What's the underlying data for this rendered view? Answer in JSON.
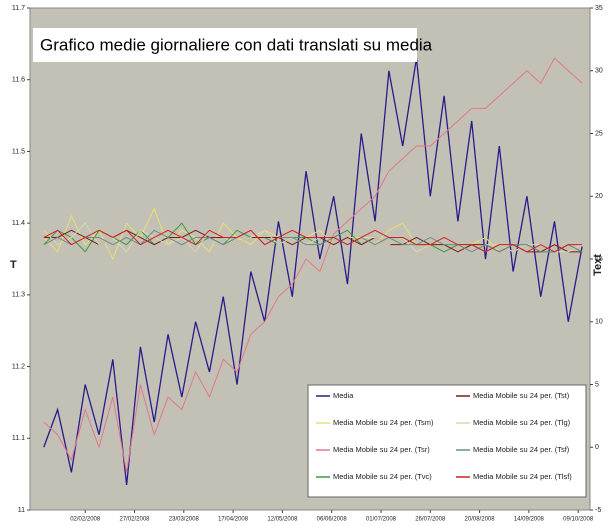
{
  "chart_data": {
    "type": "line",
    "title": "Grafico medie giornaliere con dati translati su media",
    "y_label": "T",
    "y2_label": "Text",
    "x": [
      "2008-01-12",
      "2008-01-19",
      "2008-01-26",
      "2008-02-02",
      "2008-02-09",
      "2008-02-16",
      "2008-02-23",
      "2008-03-01",
      "2008-03-08",
      "2008-03-15",
      "2008-03-22",
      "2008-03-29",
      "2008-04-05",
      "2008-04-12",
      "2008-04-19",
      "2008-04-26",
      "2008-05-03",
      "2008-05-10",
      "2008-05-17",
      "2008-05-24",
      "2008-05-31",
      "2008-06-07",
      "2008-06-14",
      "2008-06-21",
      "2008-06-28",
      "2008-07-05",
      "2008-07-12",
      "2008-07-19",
      "2008-07-26",
      "2008-08-02",
      "2008-08-09",
      "2008-08-16",
      "2008-08-23",
      "2008-08-30",
      "2008-09-06",
      "2008-09-13",
      "2008-09-20",
      "2008-09-27",
      "2008-10-04",
      "2008-10-11"
    ],
    "xlim": [
      "2008-01-05",
      "2008-10-15"
    ],
    "xticks": [
      {
        "value": "2008-02-02",
        "label": "02/02/2008"
      },
      {
        "value": "2008-02-27",
        "label": "27/02/2008"
      },
      {
        "value": "2008-03-23",
        "label": "23/03/2008"
      },
      {
        "value": "2008-04-17",
        "label": "17/04/2008"
      },
      {
        "value": "2008-05-12",
        "label": "12/05/2008"
      },
      {
        "value": "2008-06-06",
        "label": "06/06/2008"
      },
      {
        "value": "2008-07-01",
        "label": "01/07/2008"
      },
      {
        "value": "2008-07-26",
        "label": "26/07/2008"
      },
      {
        "value": "2008-08-20",
        "label": "20/08/2008"
      },
      {
        "value": "2008-09-14",
        "label": "14/09/2008"
      },
      {
        "value": "2008-10-09",
        "label": "09/10/2008"
      }
    ],
    "ylim": [
      11,
      11.7
    ],
    "yticks": [
      11,
      11.1,
      11.2,
      11.3,
      11.4,
      11.5,
      11.6,
      11.7
    ],
    "y2lim": [
      -5,
      35
    ],
    "y2ticks": [
      -5,
      0,
      5,
      10,
      15,
      20,
      25,
      30,
      35
    ],
    "series": [
      {
        "name": "Media",
        "color": "#2a1a8a",
        "axis": "y2",
        "values": [
          0,
          3,
          -2,
          5,
          1,
          7,
          -3,
          8,
          2,
          9,
          4,
          10,
          6,
          12,
          5,
          14,
          10,
          18,
          12,
          22,
          15,
          20,
          13,
          25,
          18,
          30,
          24,
          31,
          20,
          28,
          18,
          26,
          15,
          24,
          14,
          20,
          12,
          18,
          10,
          16
        ]
      },
      {
        "name": "Media Mobile su 24 per. (Tsm)",
        "color": "#e8e070",
        "values": [
          11.38,
          11.36,
          11.41,
          11.37,
          11.39,
          11.35,
          11.4,
          11.38,
          11.42,
          11.37,
          11.39,
          11.38,
          11.36,
          11.4,
          11.38,
          11.37,
          11.39,
          11.38,
          11.37,
          11.38,
          11.39,
          11.37,
          11.38,
          11.38,
          11.37,
          11.39,
          11.4,
          11.37,
          11.38,
          11.37,
          11.36,
          11.37,
          11.38,
          11.36,
          11.37,
          11.36,
          11.37,
          11.36,
          11.37,
          11.36
        ]
      },
      {
        "name": "Media Mobile su 24 per. (Tsr)",
        "color": "#e07888",
        "axis": "y2",
        "values": [
          2,
          1,
          -1,
          3,
          0,
          4,
          -2,
          5,
          1,
          4,
          3,
          6,
          4,
          7,
          6,
          9,
          10,
          12,
          13,
          15,
          14,
          17,
          18,
          19,
          20,
          22,
          23,
          24,
          24,
          25,
          26,
          27,
          27,
          28,
          29,
          30,
          29,
          31,
          30,
          29
        ]
      },
      {
        "name": "Media Mobile su 24 per. (Tvc)",
        "color": "#3c9a3c",
        "values": [
          11.37,
          11.39,
          11.38,
          11.36,
          11.39,
          11.38,
          11.37,
          11.39,
          11.37,
          11.38,
          11.4,
          11.37,
          11.38,
          11.37,
          11.39,
          11.38,
          11.38,
          11.37,
          11.38,
          11.38,
          11.37,
          11.38,
          11.39,
          11.37,
          11.38,
          11.37,
          11.38,
          11.37,
          11.37,
          11.36,
          11.37,
          11.37,
          11.36,
          11.37,
          11.36,
          11.37,
          11.36,
          11.36,
          11.37,
          11.36
        ]
      },
      {
        "name": "Media Mobile su 24 per. (Tst)",
        "color": "#7a1a1a",
        "values": [
          11.38,
          11.38,
          11.39,
          11.38,
          11.37,
          11.38,
          11.39,
          11.38,
          11.37,
          11.38,
          11.38,
          11.39,
          11.38,
          11.38,
          11.37,
          11.38,
          11.38,
          11.38,
          11.37,
          11.38,
          11.38,
          11.37,
          11.38,
          11.37,
          11.38,
          11.37,
          11.37,
          11.38,
          11.37,
          11.37,
          11.36,
          11.37,
          11.37,
          11.36,
          11.37,
          11.36,
          11.36,
          11.37,
          11.36,
          11.36
        ]
      },
      {
        "name": "Media Mobile su 24 per. (Tlg)",
        "color": "#d8d8b0",
        "values": [
          11.39,
          11.37,
          11.38,
          11.4,
          11.37,
          11.38,
          11.36,
          11.39,
          11.38,
          11.37,
          11.38,
          11.36,
          11.39,
          11.38,
          11.37,
          11.38,
          11.39,
          11.37,
          11.38,
          11.37,
          11.38,
          11.38,
          11.37,
          11.38,
          11.38,
          11.37,
          11.38,
          11.36,
          11.37,
          11.38,
          11.37,
          11.36,
          11.37,
          11.37,
          11.36,
          11.37,
          11.37,
          11.36,
          11.36,
          11.37
        ]
      },
      {
        "name": "Media Mobile su 24 per. (Tsf)",
        "color": "#6a8a8a",
        "values": [
          11.37,
          11.38,
          11.37,
          11.38,
          11.38,
          11.37,
          11.38,
          11.37,
          11.39,
          11.38,
          11.37,
          11.38,
          11.38,
          11.37,
          11.38,
          11.39,
          11.37,
          11.38,
          11.38,
          11.37,
          11.37,
          11.38,
          11.37,
          11.38,
          11.37,
          11.38,
          11.37,
          11.37,
          11.38,
          11.37,
          11.37,
          11.36,
          11.37,
          11.36,
          11.37,
          11.37,
          11.36,
          11.36,
          11.37,
          11.36
        ]
      },
      {
        "name": "Media Mobile su 24 per. (Tlsf)",
        "color": "#d02020",
        "values": [
          11.38,
          11.39,
          11.37,
          11.38,
          11.39,
          11.38,
          11.39,
          11.37,
          11.38,
          11.39,
          11.38,
          11.37,
          11.39,
          11.38,
          11.38,
          11.39,
          11.37,
          11.38,
          11.39,
          11.38,
          11.38,
          11.38,
          11.37,
          11.38,
          11.39,
          11.38,
          11.38,
          11.37,
          11.37,
          11.38,
          11.37,
          11.37,
          11.36,
          11.37,
          11.37,
          11.36,
          11.37,
          11.36,
          11.37,
          11.37
        ]
      }
    ]
  }
}
